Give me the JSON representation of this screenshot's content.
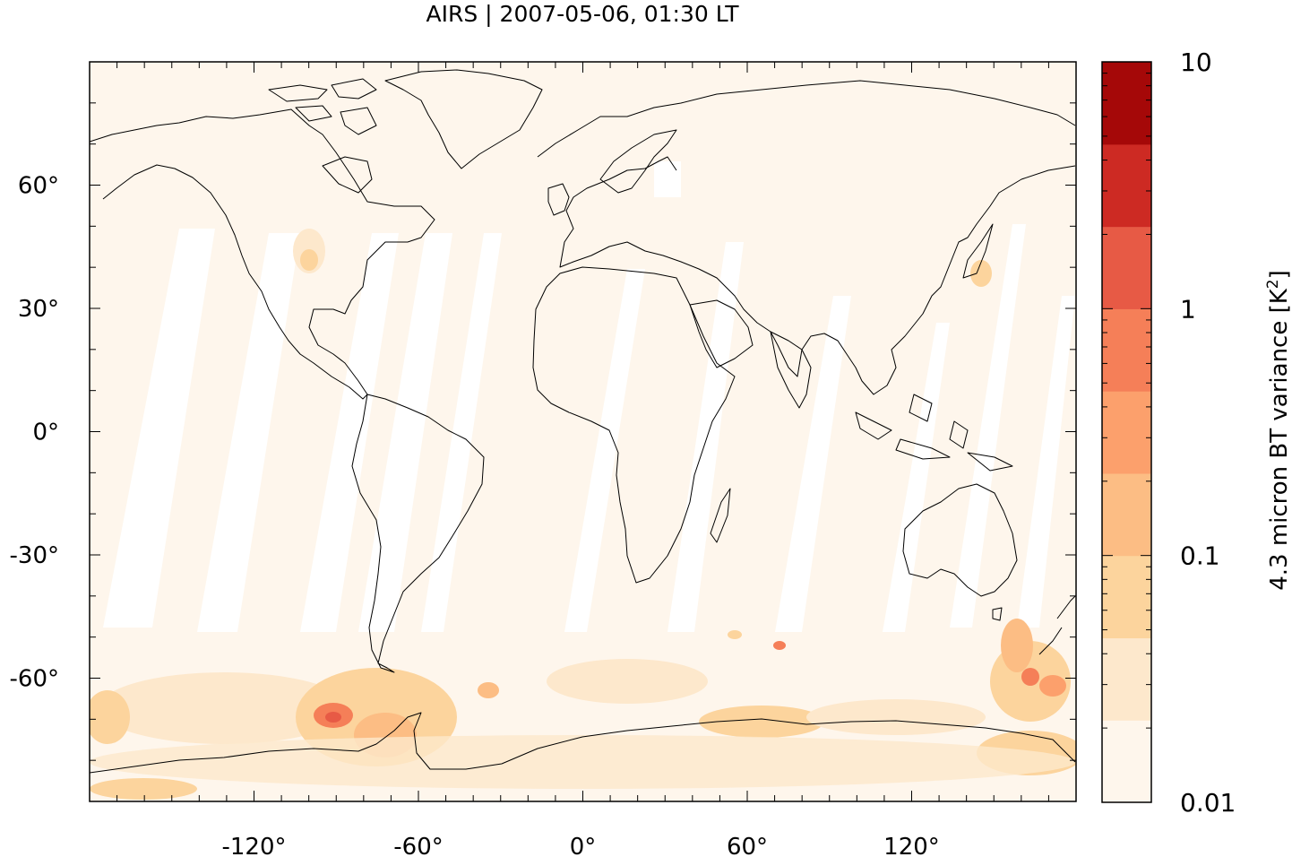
{
  "title": "AIRS | 2007-05-06, 01:30 LT",
  "map": {
    "projection": "equirectangular",
    "lon_range": [
      -180,
      180
    ],
    "lat_range": [
      -90,
      90
    ],
    "background_color": "#fef6ec",
    "gap_color": "#ffffff",
    "coastline_color": "#000000",
    "x_ticks": [
      {
        "value": -120,
        "label": "-120°"
      },
      {
        "value": -60,
        "label": "-60°"
      },
      {
        "value": 0,
        "label": "0°"
      },
      {
        "value": 60,
        "label": "60°"
      },
      {
        "value": 120,
        "label": "120°"
      }
    ],
    "y_ticks": [
      {
        "value": 60,
        "label": "60°"
      },
      {
        "value": 30,
        "label": "30°"
      },
      {
        "value": 0,
        "label": "0°"
      },
      {
        "value": -30,
        "label": "-30°"
      },
      {
        "value": -60,
        "label": "-60°"
      }
    ]
  },
  "colorbar": {
    "label": "4.3 micron BT variance [K²]",
    "label_main": "4.3 micron BT variance [K",
    "label_sup": "2",
    "label_end": "]",
    "scale": "log",
    "range": [
      0.01,
      10
    ],
    "tick_labels": [
      {
        "value": 10,
        "label": "10"
      },
      {
        "value": 1,
        "label": "1"
      },
      {
        "value": 0.1,
        "label": "0.1"
      },
      {
        "value": 0.01,
        "label": "0.01"
      }
    ],
    "colors": [
      "#fef6ec",
      "#fde8cc",
      "#fcd49d",
      "#fcbd84",
      "#fca06c",
      "#f57f58",
      "#e75a45",
      "#cd2a23",
      "#a50808"
    ]
  }
}
